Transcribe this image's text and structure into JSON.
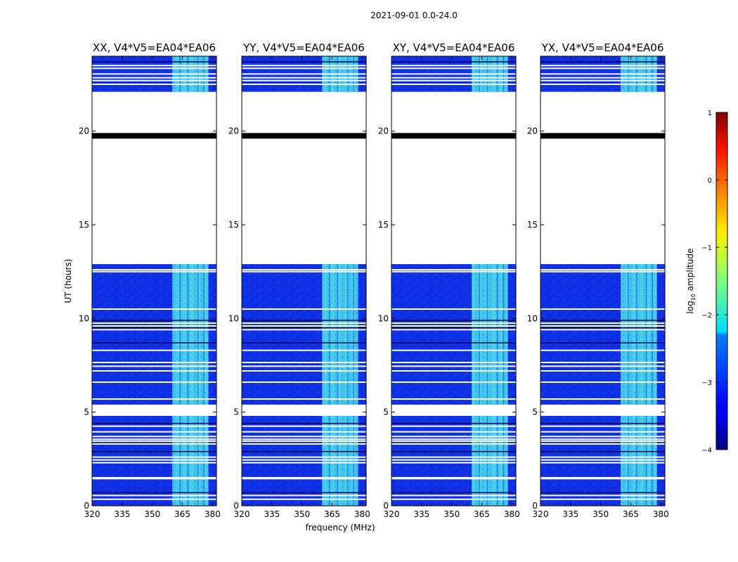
{
  "chart_data": {
    "type": "heatmap",
    "suptitle": "2021-09-01 0.0-24.0",
    "xlabel": "frequency (MHz)",
    "ylabel": "UT (hours)",
    "xlim": [
      320,
      382
    ],
    "ylim": [
      0,
      24
    ],
    "xticks": [
      320,
      335,
      350,
      365,
      380
    ],
    "yticks": [
      0,
      5,
      10,
      15,
      20
    ],
    "panels": [
      {
        "title": "XX, V4*V5=EA04*EA06",
        "polarization": "XX"
      },
      {
        "title": "YY, V4*V5=EA04*EA06",
        "polarization": "YY"
      },
      {
        "title": "XY, V4*V5=EA04*EA06",
        "polarization": "XY"
      },
      {
        "title": "YX, V4*V5=EA04*EA06",
        "polarization": "YX"
      }
    ],
    "data_time_ranges_hours": [
      [
        0.0,
        4.8
      ],
      [
        5.4,
        12.9
      ],
      [
        22.1,
        24.0
      ]
    ],
    "blank_time_ranges_hours": [
      [
        4.8,
        5.4
      ],
      [
        12.9,
        22.1
      ]
    ],
    "black_band_hours": [
      19.6,
      19.9
    ],
    "bright_band_mhz": [
      360,
      378
    ],
    "background_log10_amplitude": -3.0,
    "bright_band_log10_amplitude": -2.0,
    "colorbar": {
      "label": "log10 amplitude",
      "label_base": "log",
      "label_sub": "10",
      "label_rest": " amplitude",
      "range": [
        -4,
        1
      ],
      "ticks": [
        "1",
        "0",
        "−1",
        "−2",
        "−3",
        "−4"
      ],
      "tick_values": [
        1,
        0,
        -1,
        -2,
        -3,
        -4
      ],
      "colormap": "jet"
    }
  }
}
